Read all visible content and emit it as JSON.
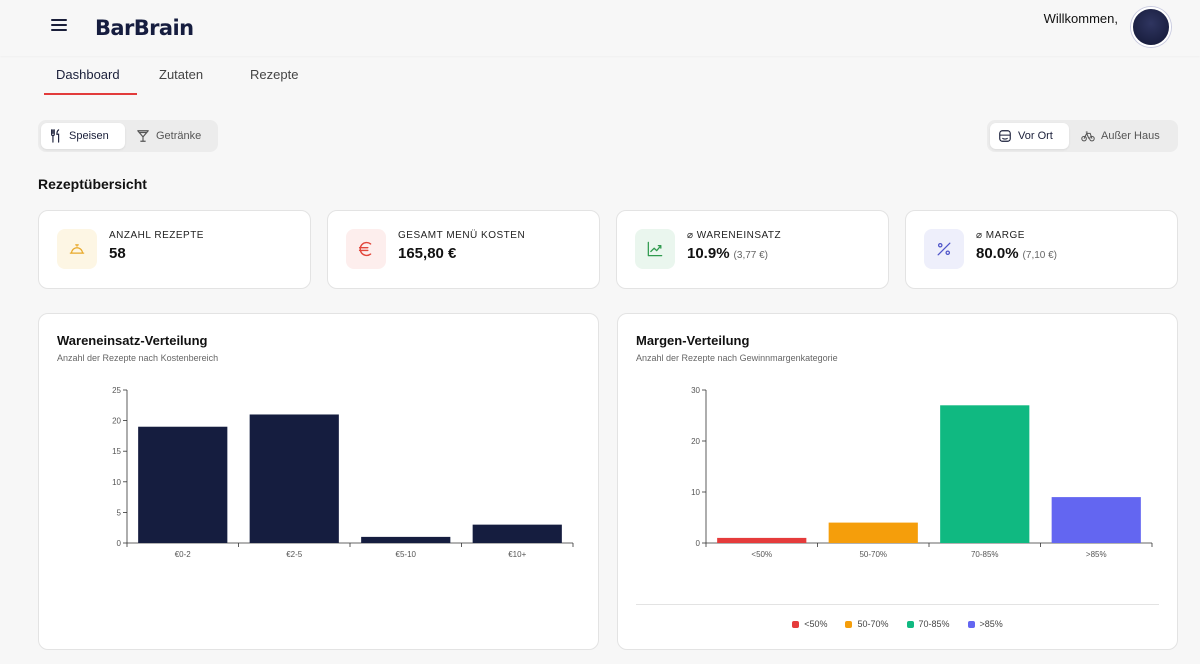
{
  "header": {
    "logo": "BarBrain",
    "welcome": "Willkommen,"
  },
  "tabs": [
    {
      "label": "Dashboard",
      "active": true
    },
    {
      "label": "Zutaten",
      "active": false
    },
    {
      "label": "Rezepte",
      "active": false
    }
  ],
  "category_toggle": {
    "options": [
      "Speisen",
      "Getränke"
    ],
    "selected": "Speisen"
  },
  "location_toggle": {
    "options": [
      "Vor Ort",
      "Außer Haus"
    ],
    "selected": "Vor Ort"
  },
  "section_title": "Rezeptübersicht",
  "cards": [
    {
      "label": "ANZAHL REZEPTE",
      "value": "58",
      "sub": "",
      "icon": "cloche-icon",
      "color": "#e8a92a"
    },
    {
      "label": "GESAMT MENÜ KOSTEN",
      "value": "165,80 €",
      "sub": "",
      "icon": "euro-icon",
      "color": "#e2463b"
    },
    {
      "label": "⌀ WARENEINSATZ",
      "value": "10.9%",
      "sub": "(3,77 €)",
      "icon": "trend-up-icon",
      "color": "#2f9a4e"
    },
    {
      "label": "⌀ MARGE",
      "value": "80.0%",
      "sub": "(7,10 €)",
      "icon": "percent-icon",
      "color": "#4f55c9"
    }
  ],
  "chart_data": [
    {
      "type": "bar",
      "title": "Wareneinsatz-Verteilung",
      "subtitle": "Anzahl der Rezepte nach Kostenbereich",
      "categories": [
        "€0-2",
        "€2-5",
        "€5-10",
        "€10+"
      ],
      "values": [
        19,
        21,
        1,
        3
      ],
      "ylim": [
        0,
        25
      ],
      "yticks": [
        0,
        5,
        10,
        15,
        20,
        25
      ],
      "colors": [
        "#151d3f",
        "#151d3f",
        "#151d3f",
        "#151d3f"
      ],
      "legend": []
    },
    {
      "type": "bar",
      "title": "Margen-Verteilung",
      "subtitle": "Anzahl der Rezepte nach Gewinnmargenkategorie",
      "categories": [
        "<50%",
        "50-70%",
        "70-85%",
        ">85%"
      ],
      "values": [
        1,
        4,
        27,
        9
      ],
      "ylim": [
        0,
        30
      ],
      "yticks": [
        0,
        10,
        20,
        30
      ],
      "colors": [
        "#e53b3b",
        "#f59e0b",
        "#10b981",
        "#6366f1"
      ],
      "legend": [
        "<50%",
        "50-70%",
        "70-85%",
        ">85%"
      ]
    }
  ]
}
